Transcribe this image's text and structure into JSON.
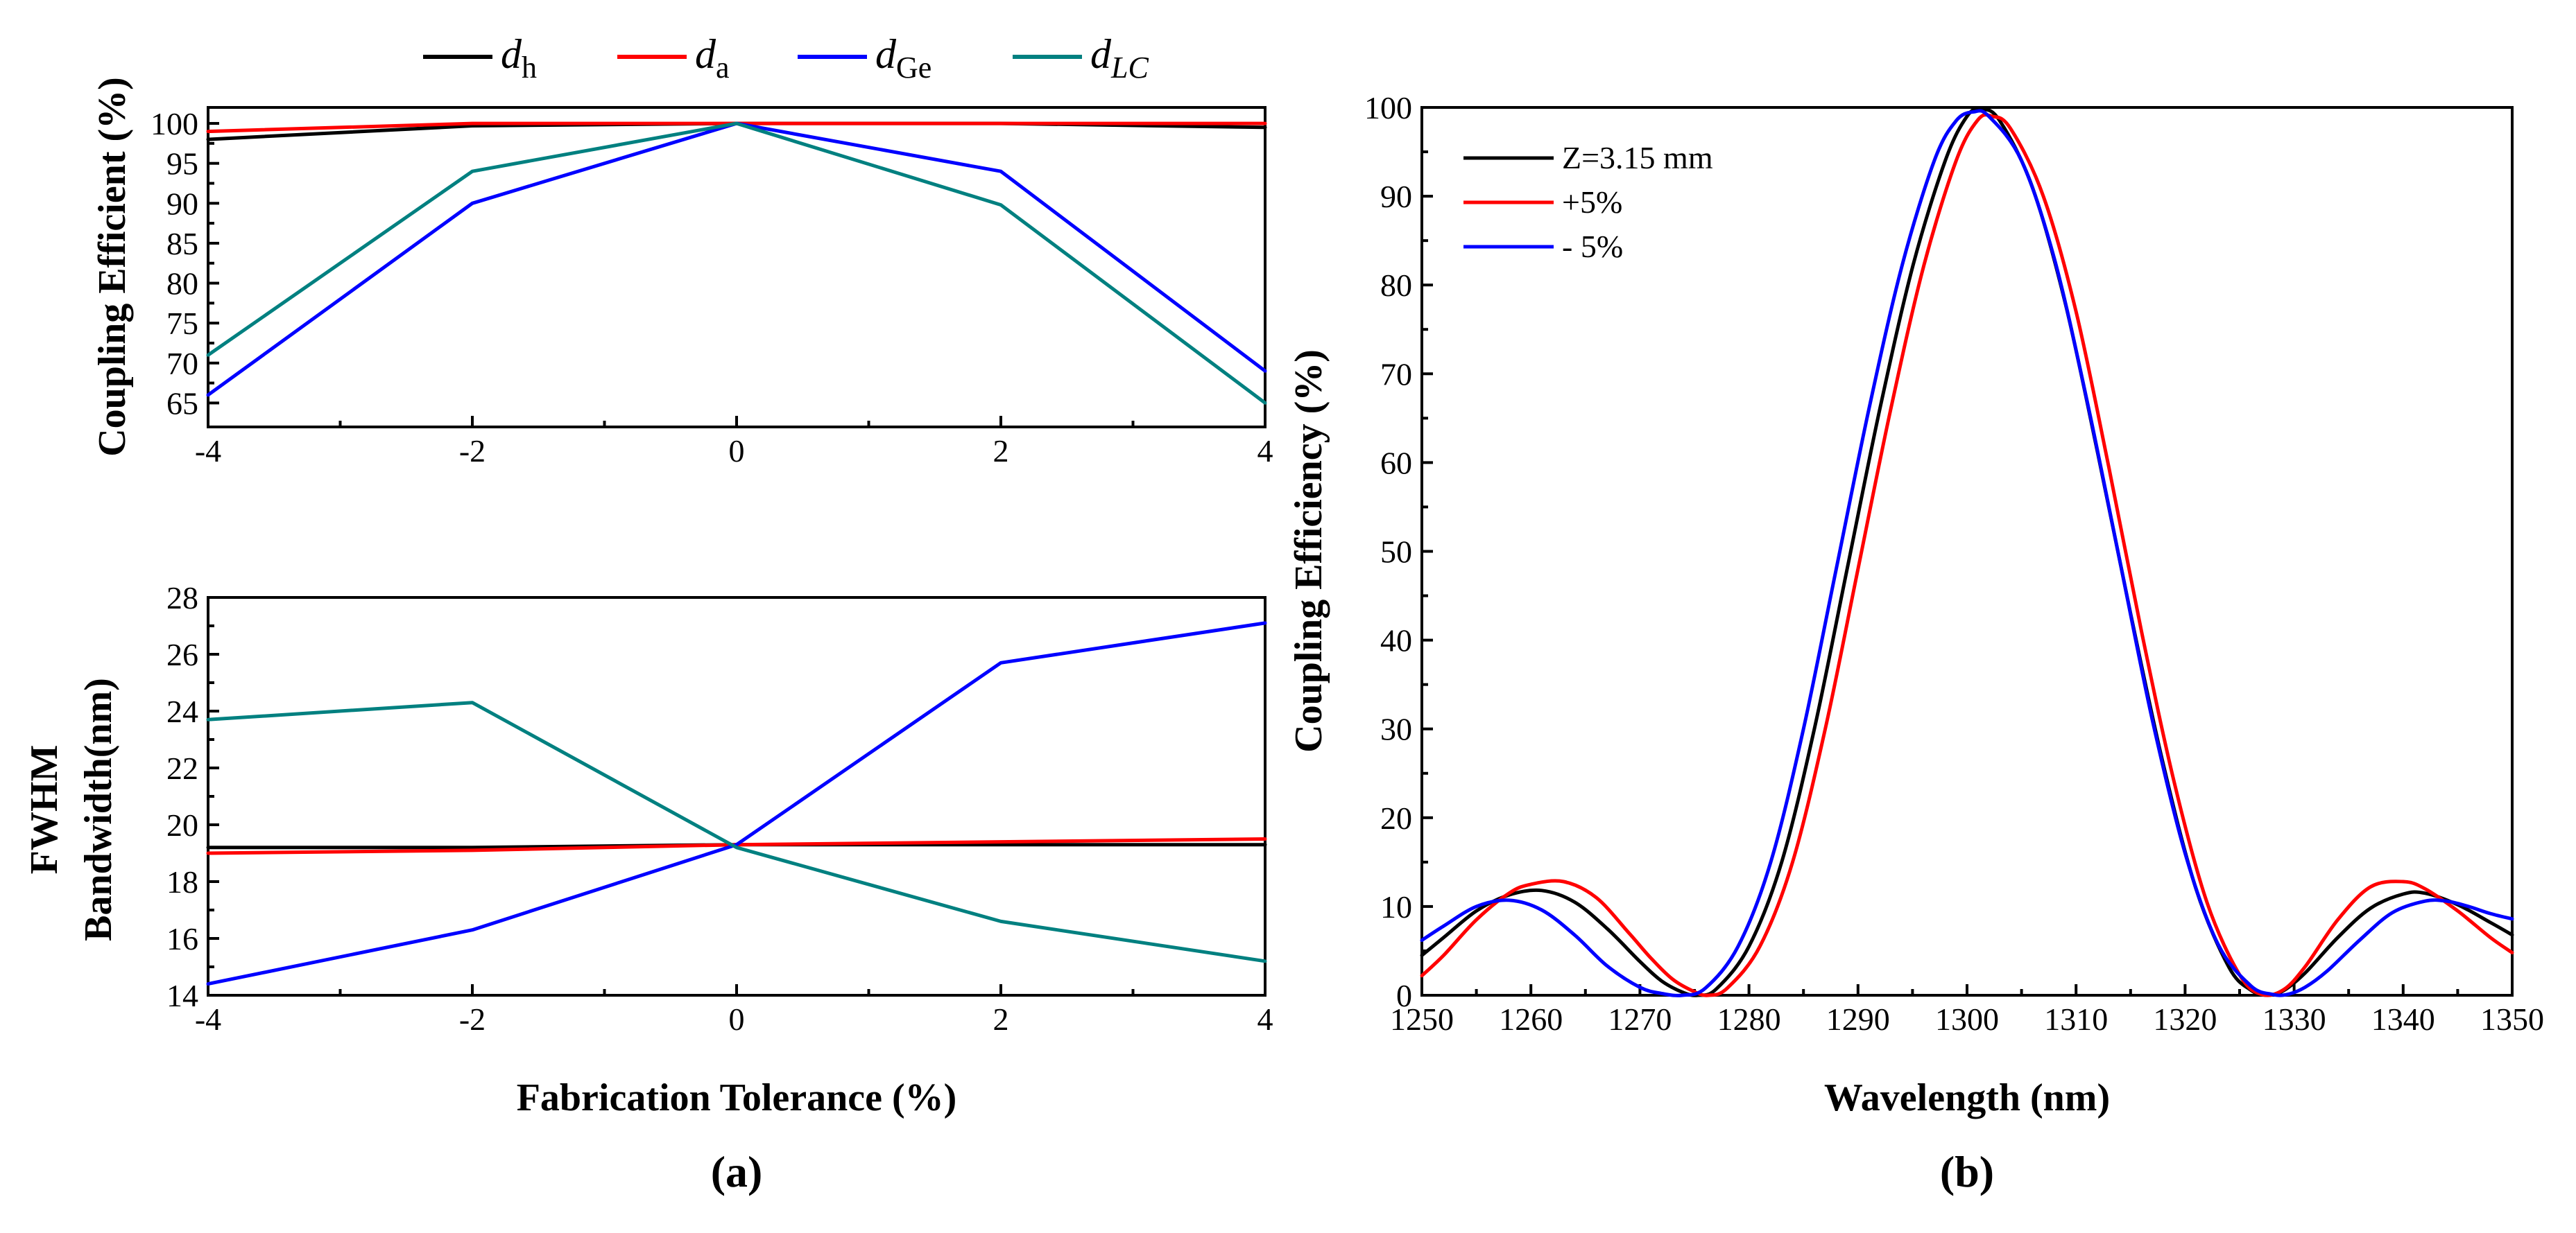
{
  "chart_data": [
    {
      "panel": "(a) top",
      "type": "line",
      "ylabel": "Coupling Efficient (%)",
      "xlim": [
        -4,
        4
      ],
      "ylim": [
        62,
        102
      ],
      "x_ticks": [
        "-4",
        "-2",
        "0",
        "2",
        "4"
      ],
      "y_ticks": [
        "65",
        "70",
        "75",
        "80",
        "85",
        "90",
        "95",
        "100"
      ],
      "y_tick_values": [
        65,
        70,
        75,
        80,
        85,
        90,
        95,
        100
      ],
      "x": [
        -4,
        -2,
        0,
        2,
        4
      ],
      "series": [
        {
          "key": "dh",
          "color": "#000000",
          "values": [
            98,
            99.7,
            100,
            100,
            99.5
          ]
        },
        {
          "key": "da",
          "color": "#ff0000",
          "values": [
            99,
            100,
            100,
            100,
            100
          ]
        },
        {
          "key": "dGe",
          "color": "#0000ff",
          "values": [
            66,
            90,
            100,
            94,
            69
          ]
        },
        {
          "key": "dLC",
          "color": "#008080",
          "values": [
            71,
            94,
            100,
            89.8,
            65
          ]
        }
      ]
    },
    {
      "panel": "(a) bottom",
      "type": "line",
      "ylabel_line1": "FWHM",
      "ylabel_line2": "Bandwidth(nm)",
      "xlabel": "Fabrication Tolerance (%)",
      "xlim": [
        -4,
        4
      ],
      "ylim": [
        14,
        28
      ],
      "x_ticks": [
        "-4",
        "-2",
        "0",
        "2",
        "4"
      ],
      "y_ticks": [
        "14",
        "16",
        "18",
        "20",
        "22",
        "24",
        "26",
        "28"
      ],
      "y_tick_values": [
        14,
        16,
        18,
        20,
        22,
        24,
        26,
        28
      ],
      "x": [
        -4,
        -2,
        0,
        2,
        4
      ],
      "series": [
        {
          "key": "dh",
          "color": "#000000",
          "values": [
            19.2,
            19.2,
            19.3,
            19.3,
            19.3
          ]
        },
        {
          "key": "da",
          "color": "#ff0000",
          "values": [
            19.0,
            19.1,
            19.3,
            19.4,
            19.5
          ]
        },
        {
          "key": "dGe",
          "color": "#0000ff",
          "values": [
            14.4,
            16.3,
            19.3,
            25.7,
            27.1
          ]
        },
        {
          "key": "dLC",
          "color": "#008080",
          "values": [
            23.7,
            24.3,
            19.2,
            16.6,
            15.2
          ]
        }
      ]
    },
    {
      "panel": "(b)",
      "type": "line",
      "xlabel": "Wavelength (nm)",
      "ylabel": "Coupling Efficiency (%)",
      "xlim": [
        1250,
        1350
      ],
      "ylim": [
        0,
        100
      ],
      "x_ticks": [
        "1250",
        "1260",
        "1270",
        "1280",
        "1290",
        "1300",
        "1310",
        "1320",
        "1330",
        "1340",
        "1350"
      ],
      "x_tick_values": [
        1250,
        1260,
        1270,
        1280,
        1290,
        1300,
        1310,
        1320,
        1330,
        1340,
        1350
      ],
      "y_ticks": [
        "0",
        "10",
        "20",
        "30",
        "40",
        "50",
        "60",
        "70",
        "80",
        "90",
        "100"
      ],
      "y_tick_values": [
        0,
        10,
        20,
        30,
        40,
        50,
        60,
        70,
        80,
        90,
        100
      ],
      "series": [
        {
          "name": "Z=3.15 mm",
          "color": "#000000",
          "x": [
            1250,
            1252,
            1255,
            1258,
            1261,
            1264,
            1267,
            1270,
            1272,
            1274,
            1275.3,
            1277,
            1280,
            1283,
            1286,
            1289,
            1292,
            1295,
            1298,
            1300,
            1301.3,
            1303,
            1306,
            1309,
            1312,
            1315,
            1318,
            1321,
            1324,
            1326,
            1327.5,
            1329,
            1331,
            1334,
            1337,
            1340,
            1342,
            1345,
            1348,
            1350
          ],
          "values": [
            4.5,
            6.5,
            9.5,
            11.3,
            11.8,
            10.5,
            7.5,
            3.8,
            1.6,
            0.3,
            0,
            0.7,
            5.5,
            15,
            30,
            48,
            66,
            82,
            94,
            99,
            99.8,
            98.5,
            91,
            78,
            61,
            43,
            26,
            12,
            3.2,
            0.6,
            0,
            0.5,
            2.5,
            6.5,
            9.8,
            11.4,
            11.5,
            10.2,
            8.2,
            6.8
          ]
        },
        {
          "name": "+5%",
          "color": "#ff0000",
          "x": [
            1250,
            1252,
            1255,
            1258,
            1260,
            1263,
            1266,
            1269,
            1271,
            1273,
            1275,
            1276.3,
            1278,
            1281,
            1284,
            1287,
            1290,
            1293,
            1296,
            1299,
            1301,
            1302.3,
            1304,
            1307,
            1310,
            1313,
            1316,
            1319,
            1322,
            1325,
            1327,
            1329,
            1331,
            1334,
            1337,
            1340,
            1342,
            1345,
            1348,
            1350
          ],
          "values": [
            2.2,
            4.5,
            8.5,
            11.5,
            12.5,
            12.8,
            11,
            7,
            4.2,
            1.8,
            0.4,
            0,
            0.8,
            5.5,
            15,
            30,
            48,
            66,
            82,
            94,
            98.6,
            99,
            97.6,
            90,
            77,
            59.5,
            41,
            24,
            10.5,
            2.3,
            0.1,
            0.6,
            3.2,
            8.5,
            12.2,
            12.8,
            12,
            9.5,
            6.5,
            4.8
          ]
        },
        {
          "name": "- 5%",
          "color": "#0000ff",
          "x": [
            1250,
            1252,
            1255,
            1258,
            1261,
            1264,
            1267,
            1270,
            1272,
            1273.9,
            1276,
            1279,
            1282,
            1285,
            1288,
            1291,
            1294,
            1297,
            1299,
            1300.6,
            1302,
            1305,
            1308,
            1311,
            1314,
            1317,
            1320,
            1323,
            1326,
            1328,
            1329.4,
            1331,
            1333,
            1336,
            1339,
            1342,
            1344,
            1346,
            1348,
            1350
          ],
          "values": [
            6.2,
            7.8,
            10,
            10.7,
            9.6,
            6.8,
            3.3,
            0.9,
            0.2,
            0,
            0.8,
            5.5,
            15,
            30,
            48,
            66,
            82,
            94,
            98.5,
            99.5,
            99,
            94,
            83,
            67,
            49,
            31,
            16,
            5.8,
            1.1,
            0.1,
            0.1,
            0.9,
            2.7,
            6.2,
            9.3,
            10.6,
            10.6,
            10,
            9.2,
            8.6
          ]
        }
      ]
    }
  ],
  "legend_a": [
    {
      "key": "dh",
      "symbol": "d",
      "subscript": "h",
      "color": "#000000"
    },
    {
      "key": "da",
      "symbol": "d",
      "subscript": "a",
      "color": "#ff0000"
    },
    {
      "key": "dGe",
      "symbol": "d",
      "subscript": "Ge",
      "color": "#0000ff"
    },
    {
      "key": "dLC",
      "symbol": "d",
      "subscript": "LC",
      "color": "#008080"
    }
  ],
  "panel_labels": {
    "a": "(a)",
    "b": "(b)"
  }
}
